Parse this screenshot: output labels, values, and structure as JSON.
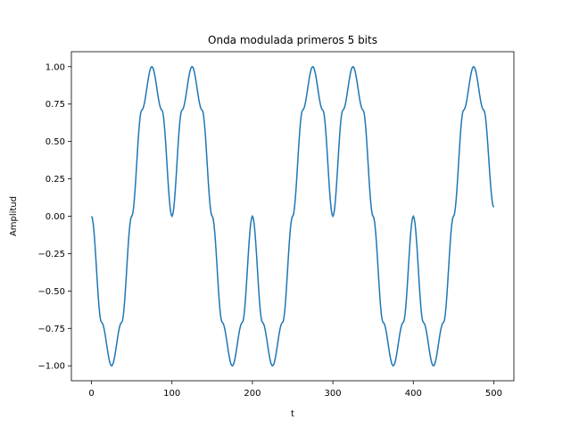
{
  "chart_data": {
    "type": "line",
    "title": "Onda modulada primeros 5 bits",
    "xlabel": "t",
    "ylabel": "Amplitud",
    "xlim": [
      -25,
      525
    ],
    "ylim": [
      -1.1,
      1.1
    ],
    "xticks": [
      0,
      100,
      200,
      300,
      400,
      500
    ],
    "xtick_labels": [
      "0",
      "100",
      "200",
      "300",
      "400",
      "500"
    ],
    "yticks": [
      -1.0,
      -0.75,
      -0.5,
      -0.25,
      0.0,
      0.25,
      0.5,
      0.75,
      1.0
    ],
    "ytick_labels": [
      "−1.00",
      "−0.75",
      "−0.50",
      "−0.25",
      "0.00",
      "0.25",
      "0.50",
      "0.75",
      "1.00"
    ],
    "grid": false,
    "series": [
      {
        "color": "#1f77b4",
        "x": [
          0,
          12.5,
          25,
          37.5,
          50,
          62.5,
          75,
          87.5,
          100,
          112.5,
          125,
          137.5,
          150,
          162.5,
          175,
          187.5,
          200,
          212.5,
          225,
          237.5,
          250,
          262.5,
          275,
          287.5,
          300,
          312.5,
          325,
          337.5,
          350,
          362.5,
          375,
          387.5,
          400,
          412.5,
          425,
          437.5,
          450,
          462.5,
          475,
          487.5,
          500
        ],
        "y": [
          0,
          -0.71,
          -1.0,
          -0.71,
          0,
          0.71,
          1.0,
          0.71,
          0,
          0.71,
          1.0,
          0.71,
          0,
          -0.71,
          -1.0,
          -0.71,
          0,
          -0.71,
          -1.0,
          -0.71,
          0,
          0.71,
          1.0,
          0.71,
          0,
          0.71,
          1.0,
          0.71,
          0,
          -0.71,
          -1.0,
          -0.71,
          0,
          -0.71,
          -1.0,
          -0.71,
          0,
          0.71,
          1.0,
          0.71,
          0.06
        ]
      }
    ]
  }
}
